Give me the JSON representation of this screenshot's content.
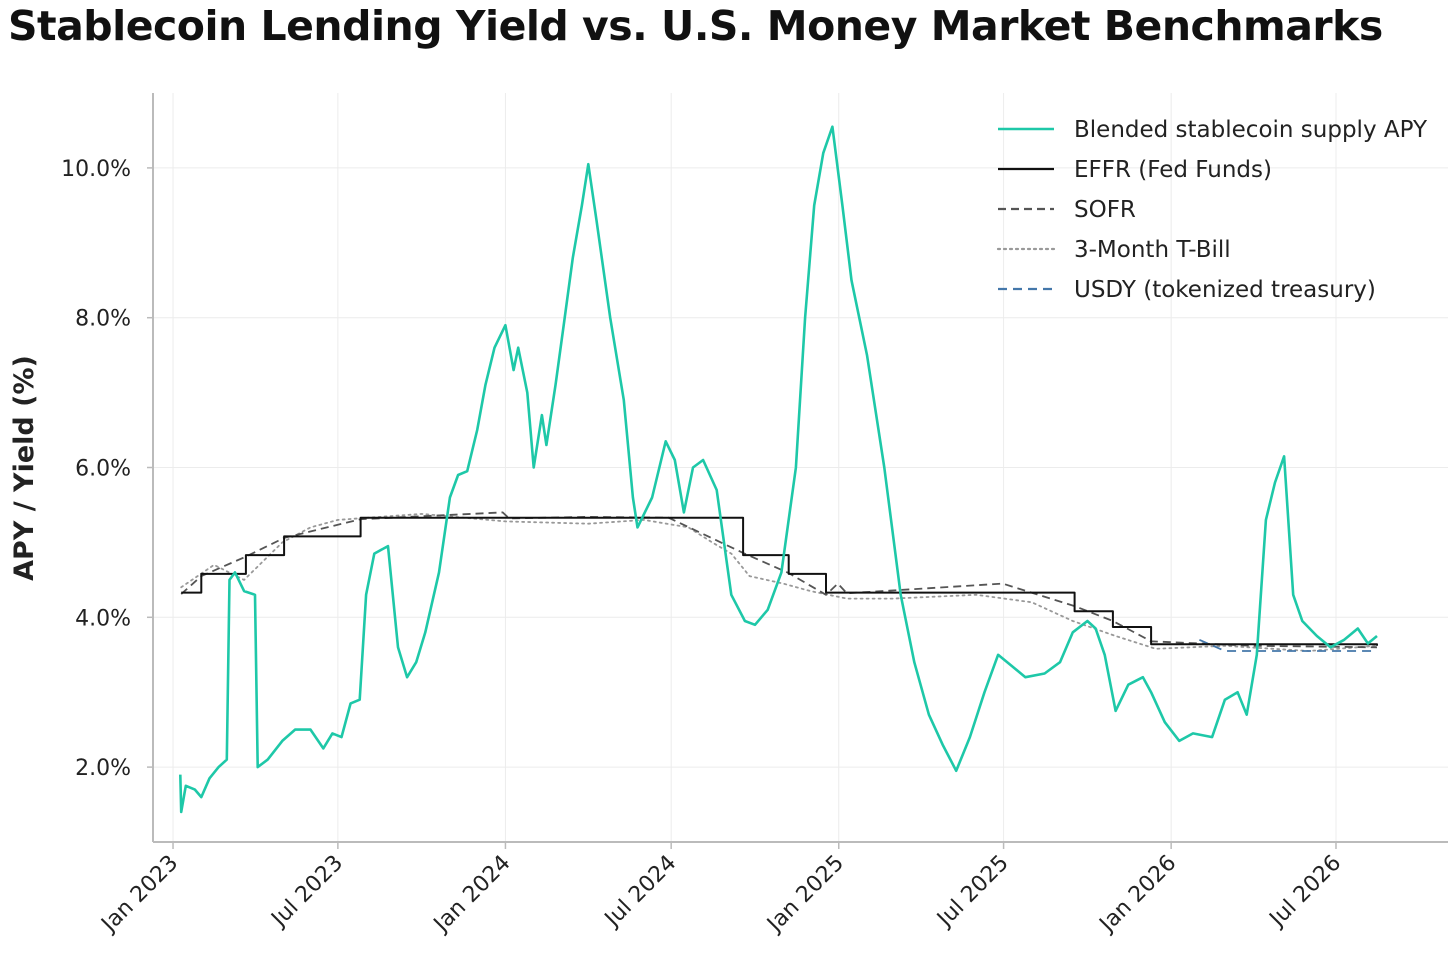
{
  "chart_data": {
    "type": "line",
    "title": "Stablecoin Lending Yield vs. U.S. Money Market Benchmarks",
    "xlabel": "",
    "ylabel": "APY / Yield (%)",
    "xlim": [
      "2022-12-10",
      "2026-11-01"
    ],
    "ylim": [
      1.0,
      11.0
    ],
    "x_ticks": [
      {
        "date": "2023-01-01",
        "label": "Jan 2023"
      },
      {
        "date": "2023-07-01",
        "label": "Jul 2023"
      },
      {
        "date": "2024-01-01",
        "label": "Jan 2024"
      },
      {
        "date": "2024-07-01",
        "label": "Jul 2024"
      },
      {
        "date": "2025-01-01",
        "label": "Jan 2025"
      },
      {
        "date": "2025-07-01",
        "label": "Jul 2025"
      },
      {
        "date": "2026-01-01",
        "label": "Jan 2026"
      },
      {
        "date": "2026-07-01",
        "label": "Jul 2026"
      }
    ],
    "y_ticks": [
      {
        "value": 2,
        "label": "2.0%"
      },
      {
        "value": 4,
        "label": "4.0%"
      },
      {
        "value": 6,
        "label": "6.0%"
      },
      {
        "value": 8,
        "label": "8.0%"
      },
      {
        "value": 10,
        "label": "10.0%"
      }
    ],
    "grid": true,
    "legend_position": "top-right",
    "series": [
      {
        "name": "Blended stablecoin supply APY",
        "color": "#1ec8a8",
        "style": "solid",
        "points": [
          [
            "2023-01-09",
            1.9
          ],
          [
            "2023-01-10",
            1.4
          ],
          [
            "2023-01-15",
            1.75
          ],
          [
            "2023-01-25",
            1.7
          ],
          [
            "2023-02-01",
            1.6
          ],
          [
            "2023-02-10",
            1.85
          ],
          [
            "2023-02-20",
            2.0
          ],
          [
            "2023-03-01",
            2.1
          ],
          [
            "2023-03-04",
            4.5
          ],
          [
            "2023-03-10",
            4.6
          ],
          [
            "2023-03-20",
            4.35
          ],
          [
            "2023-04-01",
            4.3
          ],
          [
            "2023-04-04",
            2.0
          ],
          [
            "2023-04-15",
            2.1
          ],
          [
            "2023-05-01",
            2.35
          ],
          [
            "2023-05-15",
            2.5
          ],
          [
            "2023-06-01",
            2.5
          ],
          [
            "2023-06-15",
            2.25
          ],
          [
            "2023-06-25",
            2.45
          ],
          [
            "2023-07-05",
            2.4
          ],
          [
            "2023-07-15",
            2.85
          ],
          [
            "2023-07-25",
            2.9
          ],
          [
            "2023-08-01",
            4.3
          ],
          [
            "2023-08-10",
            4.85
          ],
          [
            "2023-08-25",
            4.95
          ],
          [
            "2023-09-05",
            3.6
          ],
          [
            "2023-09-15",
            3.2
          ],
          [
            "2023-09-25",
            3.4
          ],
          [
            "2023-10-05",
            3.8
          ],
          [
            "2023-10-20",
            4.6
          ],
          [
            "2023-11-01",
            5.6
          ],
          [
            "2023-11-10",
            5.9
          ],
          [
            "2023-11-20",
            5.95
          ],
          [
            "2023-12-01",
            6.5
          ],
          [
            "2023-12-10",
            7.1
          ],
          [
            "2023-12-20",
            7.6
          ],
          [
            "2024-01-01",
            7.9
          ],
          [
            "2024-01-10",
            7.3
          ],
          [
            "2024-01-15",
            7.6
          ],
          [
            "2024-01-25",
            7.0
          ],
          [
            "2024-02-01",
            6.0
          ],
          [
            "2024-02-10",
            6.7
          ],
          [
            "2024-02-15",
            6.3
          ],
          [
            "2024-02-25",
            7.1
          ],
          [
            "2024-03-05",
            7.9
          ],
          [
            "2024-03-15",
            8.8
          ],
          [
            "2024-03-25",
            9.5
          ],
          [
            "2024-04-01",
            10.05
          ],
          [
            "2024-04-10",
            9.3
          ],
          [
            "2024-04-25",
            8.0
          ],
          [
            "2024-05-10",
            6.9
          ],
          [
            "2024-05-20",
            5.6
          ],
          [
            "2024-05-25",
            5.2
          ],
          [
            "2024-06-10",
            5.6
          ],
          [
            "2024-06-25",
            6.35
          ],
          [
            "2024-07-05",
            6.1
          ],
          [
            "2024-07-15",
            5.4
          ],
          [
            "2024-07-25",
            6.0
          ],
          [
            "2024-08-05",
            6.1
          ],
          [
            "2024-08-20",
            5.7
          ],
          [
            "2024-09-05",
            4.3
          ],
          [
            "2024-09-20",
            3.95
          ],
          [
            "2024-10-01",
            3.9
          ],
          [
            "2024-10-15",
            4.1
          ],
          [
            "2024-10-30",
            4.6
          ],
          [
            "2024-11-15",
            6.0
          ],
          [
            "2024-11-25",
            8.0
          ],
          [
            "2024-12-05",
            9.5
          ],
          [
            "2024-12-15",
            10.2
          ],
          [
            "2024-12-25",
            10.55
          ],
          [
            "2025-01-05",
            9.5
          ],
          [
            "2025-01-15",
            8.5
          ],
          [
            "2025-02-01",
            7.5
          ],
          [
            "2025-02-20",
            6.0
          ],
          [
            "2025-03-10",
            4.3
          ],
          [
            "2025-03-25",
            3.4
          ],
          [
            "2025-04-10",
            2.7
          ],
          [
            "2025-04-25",
            2.3
          ],
          [
            "2025-05-10",
            1.95
          ],
          [
            "2025-05-25",
            2.4
          ],
          [
            "2025-06-10",
            3.0
          ],
          [
            "2025-06-25",
            3.5
          ],
          [
            "2025-07-10",
            3.35
          ],
          [
            "2025-07-25",
            3.2
          ],
          [
            "2025-08-15",
            3.25
          ],
          [
            "2025-09-01",
            3.4
          ],
          [
            "2025-09-15",
            3.8
          ],
          [
            "2025-10-01",
            3.95
          ],
          [
            "2025-10-10",
            3.85
          ],
          [
            "2025-10-20",
            3.5
          ],
          [
            "2025-11-01",
            2.75
          ],
          [
            "2025-11-15",
            3.1
          ],
          [
            "2025-12-01",
            3.2
          ],
          [
            "2025-12-10",
            3.0
          ],
          [
            "2025-12-25",
            2.6
          ],
          [
            "2026-01-10",
            2.35
          ],
          [
            "2026-01-25",
            2.45
          ],
          [
            "2026-02-15",
            2.4
          ],
          [
            "2026-03-01",
            2.9
          ],
          [
            "2026-03-15",
            3.0
          ],
          [
            "2026-03-25",
            2.7
          ],
          [
            "2026-04-05",
            3.5
          ],
          [
            "2026-04-15",
            5.3
          ],
          [
            "2026-04-25",
            5.8
          ],
          [
            "2026-05-05",
            6.15
          ],
          [
            "2026-05-15",
            4.3
          ],
          [
            "2026-05-25",
            3.95
          ],
          [
            "2026-06-10",
            3.75
          ],
          [
            "2026-06-25",
            3.6
          ],
          [
            "2026-07-10",
            3.7
          ],
          [
            "2026-07-25",
            3.85
          ],
          [
            "2026-08-05",
            3.65
          ],
          [
            "2026-08-15",
            3.75
          ]
        ]
      },
      {
        "name": "EFFR (Fed Funds)",
        "color": "#111111",
        "style": "step",
        "points": [
          [
            "2023-01-10",
            4.33
          ],
          [
            "2023-02-01",
            4.58
          ],
          [
            "2023-03-22",
            4.83
          ],
          [
            "2023-05-03",
            5.08
          ],
          [
            "2023-07-26",
            5.33
          ],
          [
            "2024-09-18",
            4.83
          ],
          [
            "2024-11-07",
            4.58
          ],
          [
            "2024-12-18",
            4.33
          ],
          [
            "2025-09-17",
            4.08
          ],
          [
            "2025-10-29",
            3.87
          ],
          [
            "2025-12-10",
            3.64
          ],
          [
            "2026-08-15",
            3.62
          ]
        ]
      },
      {
        "name": "SOFR",
        "color": "#555555",
        "style": "dashed",
        "points": [
          [
            "2023-01-10",
            4.31
          ],
          [
            "2023-02-01",
            4.55
          ],
          [
            "2023-03-22",
            4.81
          ],
          [
            "2023-05-03",
            5.06
          ],
          [
            "2023-07-26",
            5.31
          ],
          [
            "2023-12-29",
            5.4
          ],
          [
            "2024-01-05",
            5.32
          ],
          [
            "2024-04-01",
            5.34
          ],
          [
            "2024-06-28",
            5.33
          ],
          [
            "2024-09-18",
            4.86
          ],
          [
            "2024-11-07",
            4.59
          ],
          [
            "2024-12-18",
            4.3
          ],
          [
            "2024-12-31",
            4.45
          ],
          [
            "2025-01-10",
            4.32
          ],
          [
            "2025-06-30",
            4.45
          ],
          [
            "2025-09-17",
            4.15
          ],
          [
            "2025-10-29",
            3.95
          ],
          [
            "2025-12-10",
            3.68
          ],
          [
            "2026-04-01",
            3.62
          ],
          [
            "2026-08-15",
            3.6
          ]
        ]
      },
      {
        "name": "3-Month T-Bill",
        "color": "#999999",
        "style": "dotted",
        "points": [
          [
            "2023-01-10",
            4.4
          ],
          [
            "2023-02-15",
            4.7
          ],
          [
            "2023-03-20",
            4.5
          ],
          [
            "2023-05-01",
            5.0
          ],
          [
            "2023-06-01",
            5.2
          ],
          [
            "2023-07-01",
            5.3
          ],
          [
            "2023-10-01",
            5.38
          ],
          [
            "2024-01-01",
            5.28
          ],
          [
            "2024-04-01",
            5.25
          ],
          [
            "2024-06-01",
            5.3
          ],
          [
            "2024-07-20",
            5.2
          ],
          [
            "2024-08-15",
            5.0
          ],
          [
            "2024-09-05",
            4.85
          ],
          [
            "2024-09-25",
            4.55
          ],
          [
            "2024-11-01",
            4.45
          ],
          [
            "2024-12-01",
            4.35
          ],
          [
            "2025-01-10",
            4.25
          ],
          [
            "2025-03-01",
            4.25
          ],
          [
            "2025-06-01",
            4.3
          ],
          [
            "2025-08-01",
            4.2
          ],
          [
            "2025-09-15",
            3.95
          ],
          [
            "2025-11-01",
            3.75
          ],
          [
            "2025-12-15",
            3.58
          ],
          [
            "2026-03-01",
            3.62
          ],
          [
            "2026-06-01",
            3.55
          ],
          [
            "2026-08-15",
            3.62
          ]
        ]
      },
      {
        "name": "USDY (tokenized treasury)",
        "color": "#4477aa",
        "style": "dashed",
        "points": [
          [
            "2026-02-01",
            3.7
          ],
          [
            "2026-03-01",
            3.55
          ],
          [
            "2026-08-15",
            3.55
          ]
        ]
      }
    ]
  }
}
